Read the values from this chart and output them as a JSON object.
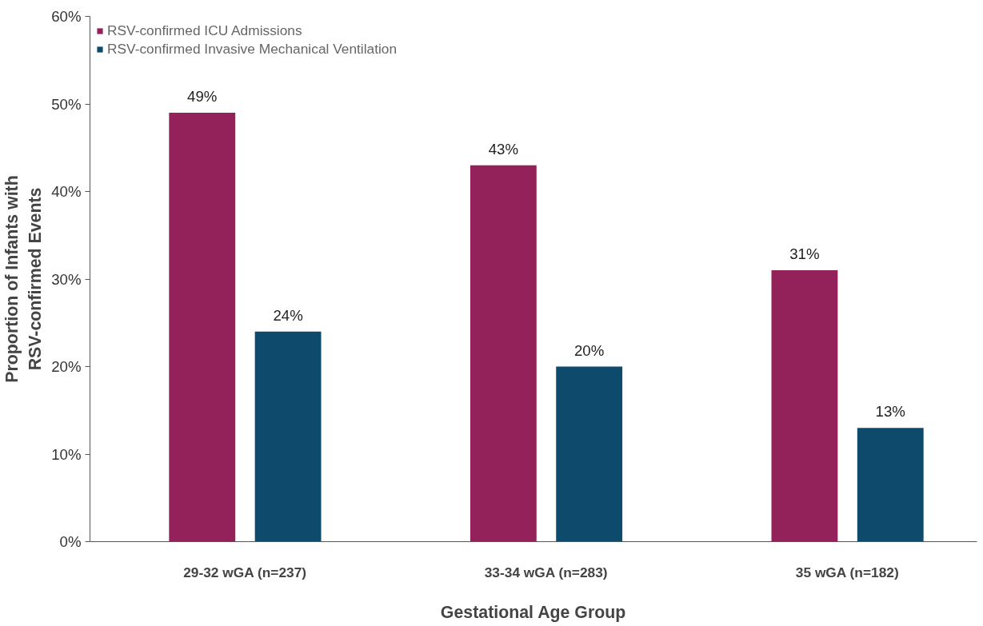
{
  "chart_data": {
    "type": "bar",
    "xlabel": "Gestational Age Group",
    "ylabel": "Proportion of Infants with RSV-confirmed Events",
    "categories": [
      "29-32 wGA (n=237)",
      "33-34 wGA (n=283)",
      "35 wGA (n=182)"
    ],
    "series": [
      {
        "name": "RSV-confirmed ICU Admissions",
        "color": "#93225a",
        "values": [
          49,
          43,
          31
        ]
      },
      {
        "name": "RSV-confirmed Invasive Mechanical Ventilation",
        "color": "#0e4a6b",
        "values": [
          24,
          20,
          13
        ]
      }
    ],
    "ylim": [
      0,
      60
    ],
    "yticks": [
      {
        "value": 0,
        "label": "0%"
      },
      {
        "value": 10,
        "label": "10%"
      },
      {
        "value": 20,
        "label": "20%"
      },
      {
        "value": 30,
        "label": "30%"
      },
      {
        "value": 40,
        "label": "40%"
      },
      {
        "value": 50,
        "label": "50%"
      },
      {
        "value": 60,
        "label": "60%"
      }
    ],
    "value_labels": [
      [
        "49%",
        "43%",
        "31%"
      ],
      [
        "24%",
        "20%",
        "13%"
      ]
    ],
    "grid": false,
    "legend": "top left"
  }
}
